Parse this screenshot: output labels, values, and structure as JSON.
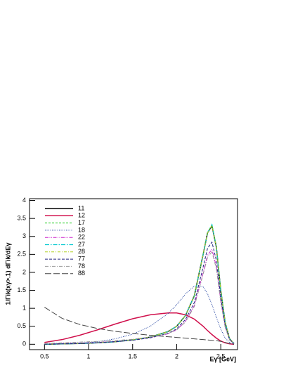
{
  "chart_data": {
    "type": "line",
    "x_label": "Eγ [GeV]",
    "y_label": "1/Γik(xγ>.1) dΓik/dEγ",
    "x": [
      0.5,
      0.7,
      0.9,
      1.1,
      1.3,
      1.5,
      1.7,
      1.9,
      2.0,
      2.1,
      2.2,
      2.3,
      2.35,
      2.4,
      2.45,
      2.5,
      2.55,
      2.6,
      2.65
    ],
    "xlim": [
      0.33,
      2.69
    ],
    "xticks": [
      0.5,
      1,
      1.5,
      2,
      2.5
    ],
    "ylim": [
      -0.15,
      4.05
    ],
    "yticks": [
      0,
      0.5,
      1,
      1.5,
      2,
      2.5,
      3,
      3.5,
      4
    ],
    "grid": false,
    "legend": "top-left",
    "series": [
      {
        "name": "11",
        "color": "#000000",
        "dash": "none",
        "width": 1.5,
        "values": [
          0,
          0.01,
          0.02,
          0.04,
          0.07,
          0.12,
          0.2,
          0.35,
          0.5,
          0.8,
          1.35,
          2.5,
          3.1,
          3.3,
          2.7,
          1.5,
          0.6,
          0.15,
          0.02
        ]
      },
      {
        "name": "12",
        "color": "#d0104c",
        "dash": "none",
        "width": 1.5,
        "values": [
          0.05,
          0.13,
          0.25,
          0.4,
          0.56,
          0.71,
          0.82,
          0.87,
          0.87,
          0.82,
          0.7,
          0.5,
          0.38,
          0.27,
          0.17,
          0.09,
          0.04,
          0.01,
          0
        ]
      },
      {
        "name": "17",
        "color": "#22cc22",
        "dash": "3,2",
        "width": 1,
        "values": [
          0,
          0.01,
          0.02,
          0.04,
          0.07,
          0.12,
          0.2,
          0.35,
          0.5,
          0.8,
          1.35,
          2.5,
          3.1,
          3.32,
          2.7,
          1.5,
          0.6,
          0.15,
          0.02
        ]
      },
      {
        "name": "18",
        "color": "#2040a0",
        "dash": "1,1.5",
        "width": 1,
        "values": [
          0,
          0.01,
          0.03,
          0.07,
          0.15,
          0.28,
          0.5,
          0.85,
          1.1,
          1.4,
          1.62,
          1.6,
          1.4,
          1.1,
          0.75,
          0.42,
          0.17,
          0.05,
          0.01
        ]
      },
      {
        "name": "22",
        "color": "#cc22cc",
        "dash": "5,1.5,1,1.5,1,1.5",
        "width": 1,
        "values": [
          0.01,
          0.02,
          0.03,
          0.05,
          0.08,
          0.12,
          0.18,
          0.29,
          0.4,
          0.64,
          1.08,
          2.0,
          2.48,
          2.64,
          2.16,
          1.2,
          0.48,
          0.12,
          0.02
        ]
      },
      {
        "name": "27",
        "color": "#00c8d0",
        "dash": "6,2,1.5,2",
        "width": 1.2,
        "values": [
          0,
          0.01,
          0.02,
          0.04,
          0.07,
          0.12,
          0.2,
          0.35,
          0.5,
          0.8,
          1.35,
          2.5,
          3.1,
          3.33,
          2.7,
          1.5,
          0.6,
          0.15,
          0.02
        ]
      },
      {
        "name": "28",
        "color": "#b0d020",
        "dash": "4,2,1,2",
        "width": 1,
        "values": [
          0,
          0.01,
          0.02,
          0.04,
          0.07,
          0.12,
          0.2,
          0.35,
          0.5,
          0.8,
          1.35,
          2.5,
          3.1,
          3.31,
          2.7,
          1.5,
          0.6,
          0.15,
          0.02
        ]
      },
      {
        "name": "77",
        "color": "#202080",
        "dash": "4,2",
        "width": 1,
        "values": [
          0,
          0.01,
          0.02,
          0.04,
          0.07,
          0.11,
          0.18,
          0.3,
          0.43,
          0.69,
          1.16,
          2.15,
          2.67,
          2.84,
          2.33,
          1.3,
          0.52,
          0.13,
          0.02
        ]
      },
      {
        "name": "78",
        "color": "#999999",
        "dash": "5,2,1,2",
        "width": 1,
        "values": [
          0.02,
          0.04,
          0.06,
          0.08,
          0.1,
          0.14,
          0.2,
          0.3,
          0.4,
          0.62,
          1.05,
          1.95,
          2.42,
          2.57,
          2.1,
          1.17,
          0.47,
          0.12,
          0.02
        ]
      },
      {
        "name": "88",
        "color": "#444444",
        "dash": "9,3",
        "width": 1,
        "values": [
          1.03,
          0.72,
          0.55,
          0.44,
          0.36,
          0.3,
          0.25,
          0.21,
          0.19,
          0.17,
          0.15,
          0.13,
          0.12,
          0.11,
          0.1,
          0.08,
          0.05,
          0.02,
          0
        ]
      }
    ]
  }
}
